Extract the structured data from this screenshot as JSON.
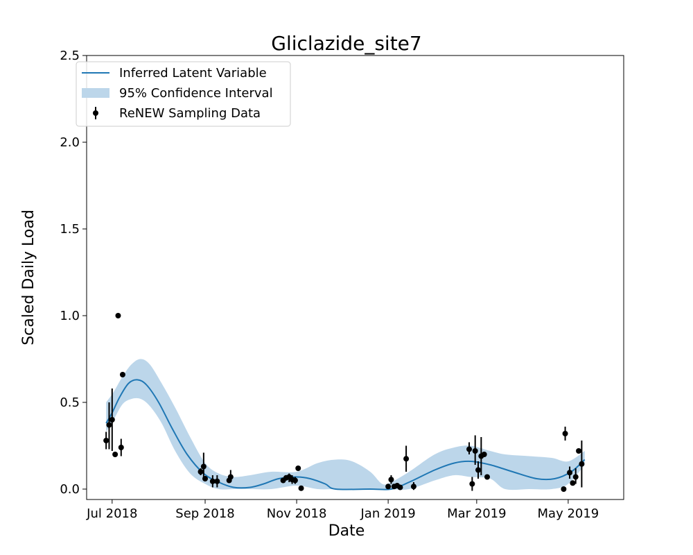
{
  "chart_data": {
    "type": "line",
    "title": "Gliclazide_site7",
    "xlabel": "Date",
    "ylabel": "Scaled Daily Load",
    "xlim": [
      "2018-06-14",
      "2019-06-07"
    ],
    "ylim": [
      -0.06,
      2.5
    ],
    "x_ticks": [
      {
        "date": "2018-07-01",
        "label": "Jul 2018"
      },
      {
        "date": "2018-09-01",
        "label": "Sep 2018"
      },
      {
        "date": "2018-11-01",
        "label": "Nov 2018"
      },
      {
        "date": "2019-01-01",
        "label": "Jan 2019"
      },
      {
        "date": "2019-03-01",
        "label": "Mar 2019"
      },
      {
        "date": "2019-05-01",
        "label": "May 2019"
      }
    ],
    "y_ticks": [
      {
        "value": 0.0,
        "label": "0.0"
      },
      {
        "value": 0.5,
        "label": "0.5"
      },
      {
        "value": 1.0,
        "label": "1.0"
      },
      {
        "value": 1.5,
        "label": "1.5"
      },
      {
        "value": 2.0,
        "label": "2.0"
      },
      {
        "value": 2.5,
        "label": "2.5"
      }
    ],
    "grid": false,
    "legend_position": "top-left",
    "legend": [
      {
        "label": "Inferred Latent Variable",
        "kind": "line"
      },
      {
        "label": "95% Confidence Interval",
        "kind": "band"
      },
      {
        "label": "ReNEW Sampling Data",
        "kind": "errorbar"
      }
    ],
    "colors": {
      "line": "#1f77b4",
      "band": "#bcd6ea",
      "points": "#000000"
    },
    "series": [
      {
        "kind": "line",
        "points": [
          {
            "x": "2018-06-27",
            "y": 0.38
          },
          {
            "x": "2018-07-01",
            "y": 0.44
          },
          {
            "x": "2018-07-06",
            "y": 0.53
          },
          {
            "x": "2018-07-12",
            "y": 0.61
          },
          {
            "x": "2018-07-18",
            "y": 0.63
          },
          {
            "x": "2018-07-24",
            "y": 0.6
          },
          {
            "x": "2018-08-01",
            "y": 0.5
          },
          {
            "x": "2018-08-10",
            "y": 0.35
          },
          {
            "x": "2018-08-20",
            "y": 0.2
          },
          {
            "x": "2018-08-31",
            "y": 0.09
          },
          {
            "x": "2018-09-10",
            "y": 0.04
          },
          {
            "x": "2018-09-20",
            "y": 0.01
          },
          {
            "x": "2018-10-01",
            "y": 0.01
          },
          {
            "x": "2018-10-10",
            "y": 0.03
          },
          {
            "x": "2018-10-20",
            "y": 0.06
          },
          {
            "x": "2018-11-01",
            "y": 0.07
          },
          {
            "x": "2018-11-10",
            "y": 0.06
          },
          {
            "x": "2018-11-20",
            "y": 0.03
          },
          {
            "x": "2018-11-27",
            "y": 0.0
          },
          {
            "x": "2018-12-20",
            "y": 0.0
          },
          {
            "x": "2019-01-03",
            "y": 0.0
          },
          {
            "x": "2019-01-15",
            "y": 0.04
          },
          {
            "x": "2019-02-01",
            "y": 0.11
          },
          {
            "x": "2019-02-14",
            "y": 0.15
          },
          {
            "x": "2019-02-25",
            "y": 0.16
          },
          {
            "x": "2019-03-10",
            "y": 0.14
          },
          {
            "x": "2019-03-25",
            "y": 0.1
          },
          {
            "x": "2019-04-10",
            "y": 0.06
          },
          {
            "x": "2019-04-22",
            "y": 0.06
          },
          {
            "x": "2019-05-03",
            "y": 0.1
          },
          {
            "x": "2019-05-12",
            "y": 0.17
          }
        ]
      },
      {
        "kind": "band",
        "points": [
          {
            "x": "2018-06-27",
            "lo": 0.33,
            "hi": 0.5
          },
          {
            "x": "2018-07-02",
            "lo": 0.4,
            "hi": 0.56
          },
          {
            "x": "2018-07-08",
            "lo": 0.49,
            "hi": 0.65
          },
          {
            "x": "2018-07-14",
            "lo": 0.52,
            "hi": 0.72
          },
          {
            "x": "2018-07-20",
            "lo": 0.52,
            "hi": 0.75
          },
          {
            "x": "2018-07-26",
            "lo": 0.48,
            "hi": 0.72
          },
          {
            "x": "2018-08-03",
            "lo": 0.38,
            "hi": 0.61
          },
          {
            "x": "2018-08-12",
            "lo": 0.22,
            "hi": 0.47
          },
          {
            "x": "2018-08-22",
            "lo": 0.09,
            "hi": 0.3
          },
          {
            "x": "2018-09-01",
            "lo": 0.03,
            "hi": 0.15
          },
          {
            "x": "2018-09-10",
            "lo": 0.0,
            "hi": 0.09
          },
          {
            "x": "2018-09-20",
            "lo": 0.0,
            "hi": 0.07
          },
          {
            "x": "2018-10-01",
            "lo": 0.0,
            "hi": 0.08
          },
          {
            "x": "2018-10-15",
            "lo": 0.0,
            "hi": 0.1
          },
          {
            "x": "2018-11-01",
            "lo": 0.02,
            "hi": 0.1
          },
          {
            "x": "2018-11-15",
            "lo": 0.0,
            "hi": 0.15
          },
          {
            "x": "2018-11-27",
            "lo": 0.0,
            "hi": 0.17
          },
          {
            "x": "2018-12-08",
            "lo": 0.0,
            "hi": 0.16
          },
          {
            "x": "2018-12-20",
            "lo": 0.0,
            "hi": 0.1
          },
          {
            "x": "2018-12-28",
            "lo": 0.0,
            "hi": 0.03
          },
          {
            "x": "2019-01-03",
            "lo": 0.0,
            "hi": 0.04
          },
          {
            "x": "2019-01-15",
            "lo": 0.0,
            "hi": 0.1
          },
          {
            "x": "2019-02-01",
            "lo": 0.05,
            "hi": 0.2
          },
          {
            "x": "2019-02-14",
            "lo": 0.08,
            "hi": 0.24
          },
          {
            "x": "2019-02-25",
            "lo": 0.07,
            "hi": 0.25
          },
          {
            "x": "2019-03-10",
            "lo": 0.06,
            "hi": 0.22
          },
          {
            "x": "2019-03-20",
            "lo": 0.0,
            "hi": 0.2
          },
          {
            "x": "2019-04-05",
            "lo": 0.0,
            "hi": 0.19
          },
          {
            "x": "2019-04-20",
            "lo": 0.0,
            "hi": 0.18
          },
          {
            "x": "2019-05-01",
            "lo": 0.03,
            "hi": 0.16
          },
          {
            "x": "2019-05-12",
            "lo": 0.14,
            "hi": 0.22
          }
        ]
      },
      {
        "kind": "errorbar",
        "points": [
          {
            "x": "2018-06-27",
            "y": 0.28,
            "lo": 0.23,
            "hi": 0.33
          },
          {
            "x": "2018-06-29",
            "y": 0.37,
            "lo": 0.23,
            "hi": 0.5
          },
          {
            "x": "2018-07-01",
            "y": 0.4,
            "lo": 0.22,
            "hi": 0.58
          },
          {
            "x": "2018-07-03",
            "y": 0.2
          },
          {
            "x": "2018-07-05",
            "y": 1.0
          },
          {
            "x": "2018-07-07",
            "y": 0.24,
            "lo": 0.19,
            "hi": 0.29
          },
          {
            "x": "2018-07-08",
            "y": 0.66
          },
          {
            "x": "2018-08-29",
            "y": 0.1,
            "lo": 0.08,
            "hi": 0.12
          },
          {
            "x": "2018-08-31",
            "y": 0.13,
            "lo": 0.06,
            "hi": 0.21
          },
          {
            "x": "2018-09-01",
            "y": 0.06
          },
          {
            "x": "2018-09-06",
            "y": 0.045,
            "lo": 0.01,
            "hi": 0.08
          },
          {
            "x": "2018-09-09",
            "y": 0.045,
            "lo": 0.01,
            "hi": 0.08
          },
          {
            "x": "2018-09-17",
            "y": 0.05
          },
          {
            "x": "2018-09-18",
            "y": 0.07,
            "lo": 0.04,
            "hi": 0.11
          },
          {
            "x": "2018-10-23",
            "y": 0.05
          },
          {
            "x": "2018-10-25",
            "y": 0.065
          },
          {
            "x": "2018-10-27",
            "y": 0.07,
            "lo": 0.04,
            "hi": 0.09
          },
          {
            "x": "2018-10-29",
            "y": 0.055,
            "lo": 0.03,
            "hi": 0.08
          },
          {
            "x": "2018-10-31",
            "y": 0.05,
            "lo": 0.03,
            "hi": 0.07
          },
          {
            "x": "2018-11-02",
            "y": 0.12
          },
          {
            "x": "2018-11-04",
            "y": 0.005
          },
          {
            "x": "2019-01-01",
            "y": 0.015
          },
          {
            "x": "2019-01-03",
            "y": 0.055,
            "lo": 0.03,
            "hi": 0.08
          },
          {
            "x": "2019-01-05",
            "y": 0.015
          },
          {
            "x": "2019-01-07",
            "y": 0.02
          },
          {
            "x": "2019-01-09",
            "y": 0.01
          },
          {
            "x": "2019-01-13",
            "y": 0.175,
            "lo": 0.1,
            "hi": 0.25
          },
          {
            "x": "2019-01-18",
            "y": 0.015,
            "lo": -0.005,
            "hi": 0.04
          },
          {
            "x": "2019-02-24",
            "y": 0.23,
            "lo": 0.2,
            "hi": 0.27
          },
          {
            "x": "2019-02-26",
            "y": 0.03,
            "lo": -0.01,
            "hi": 0.07
          },
          {
            "x": "2019-02-28",
            "y": 0.22,
            "lo": 0.14,
            "hi": 0.31
          },
          {
            "x": "2019-03-02",
            "y": 0.11,
            "lo": 0.06,
            "hi": 0.16
          },
          {
            "x": "2019-03-04",
            "y": 0.19,
            "lo": 0.08,
            "hi": 0.3
          },
          {
            "x": "2019-03-06",
            "y": 0.2
          },
          {
            "x": "2019-03-08",
            "y": 0.07
          },
          {
            "x": "2019-04-28",
            "y": 0.0
          },
          {
            "x": "2019-04-29",
            "y": 0.32,
            "lo": 0.28,
            "hi": 0.36
          },
          {
            "x": "2019-05-02",
            "y": 0.095,
            "lo": 0.06,
            "hi": 0.13
          },
          {
            "x": "2019-05-04",
            "y": 0.035
          },
          {
            "x": "2019-05-06",
            "y": 0.07,
            "lo": 0.03,
            "hi": 0.12
          },
          {
            "x": "2019-05-08",
            "y": 0.22
          },
          {
            "x": "2019-05-10",
            "y": 0.145,
            "lo": 0.01,
            "hi": 0.28
          }
        ]
      }
    ]
  }
}
